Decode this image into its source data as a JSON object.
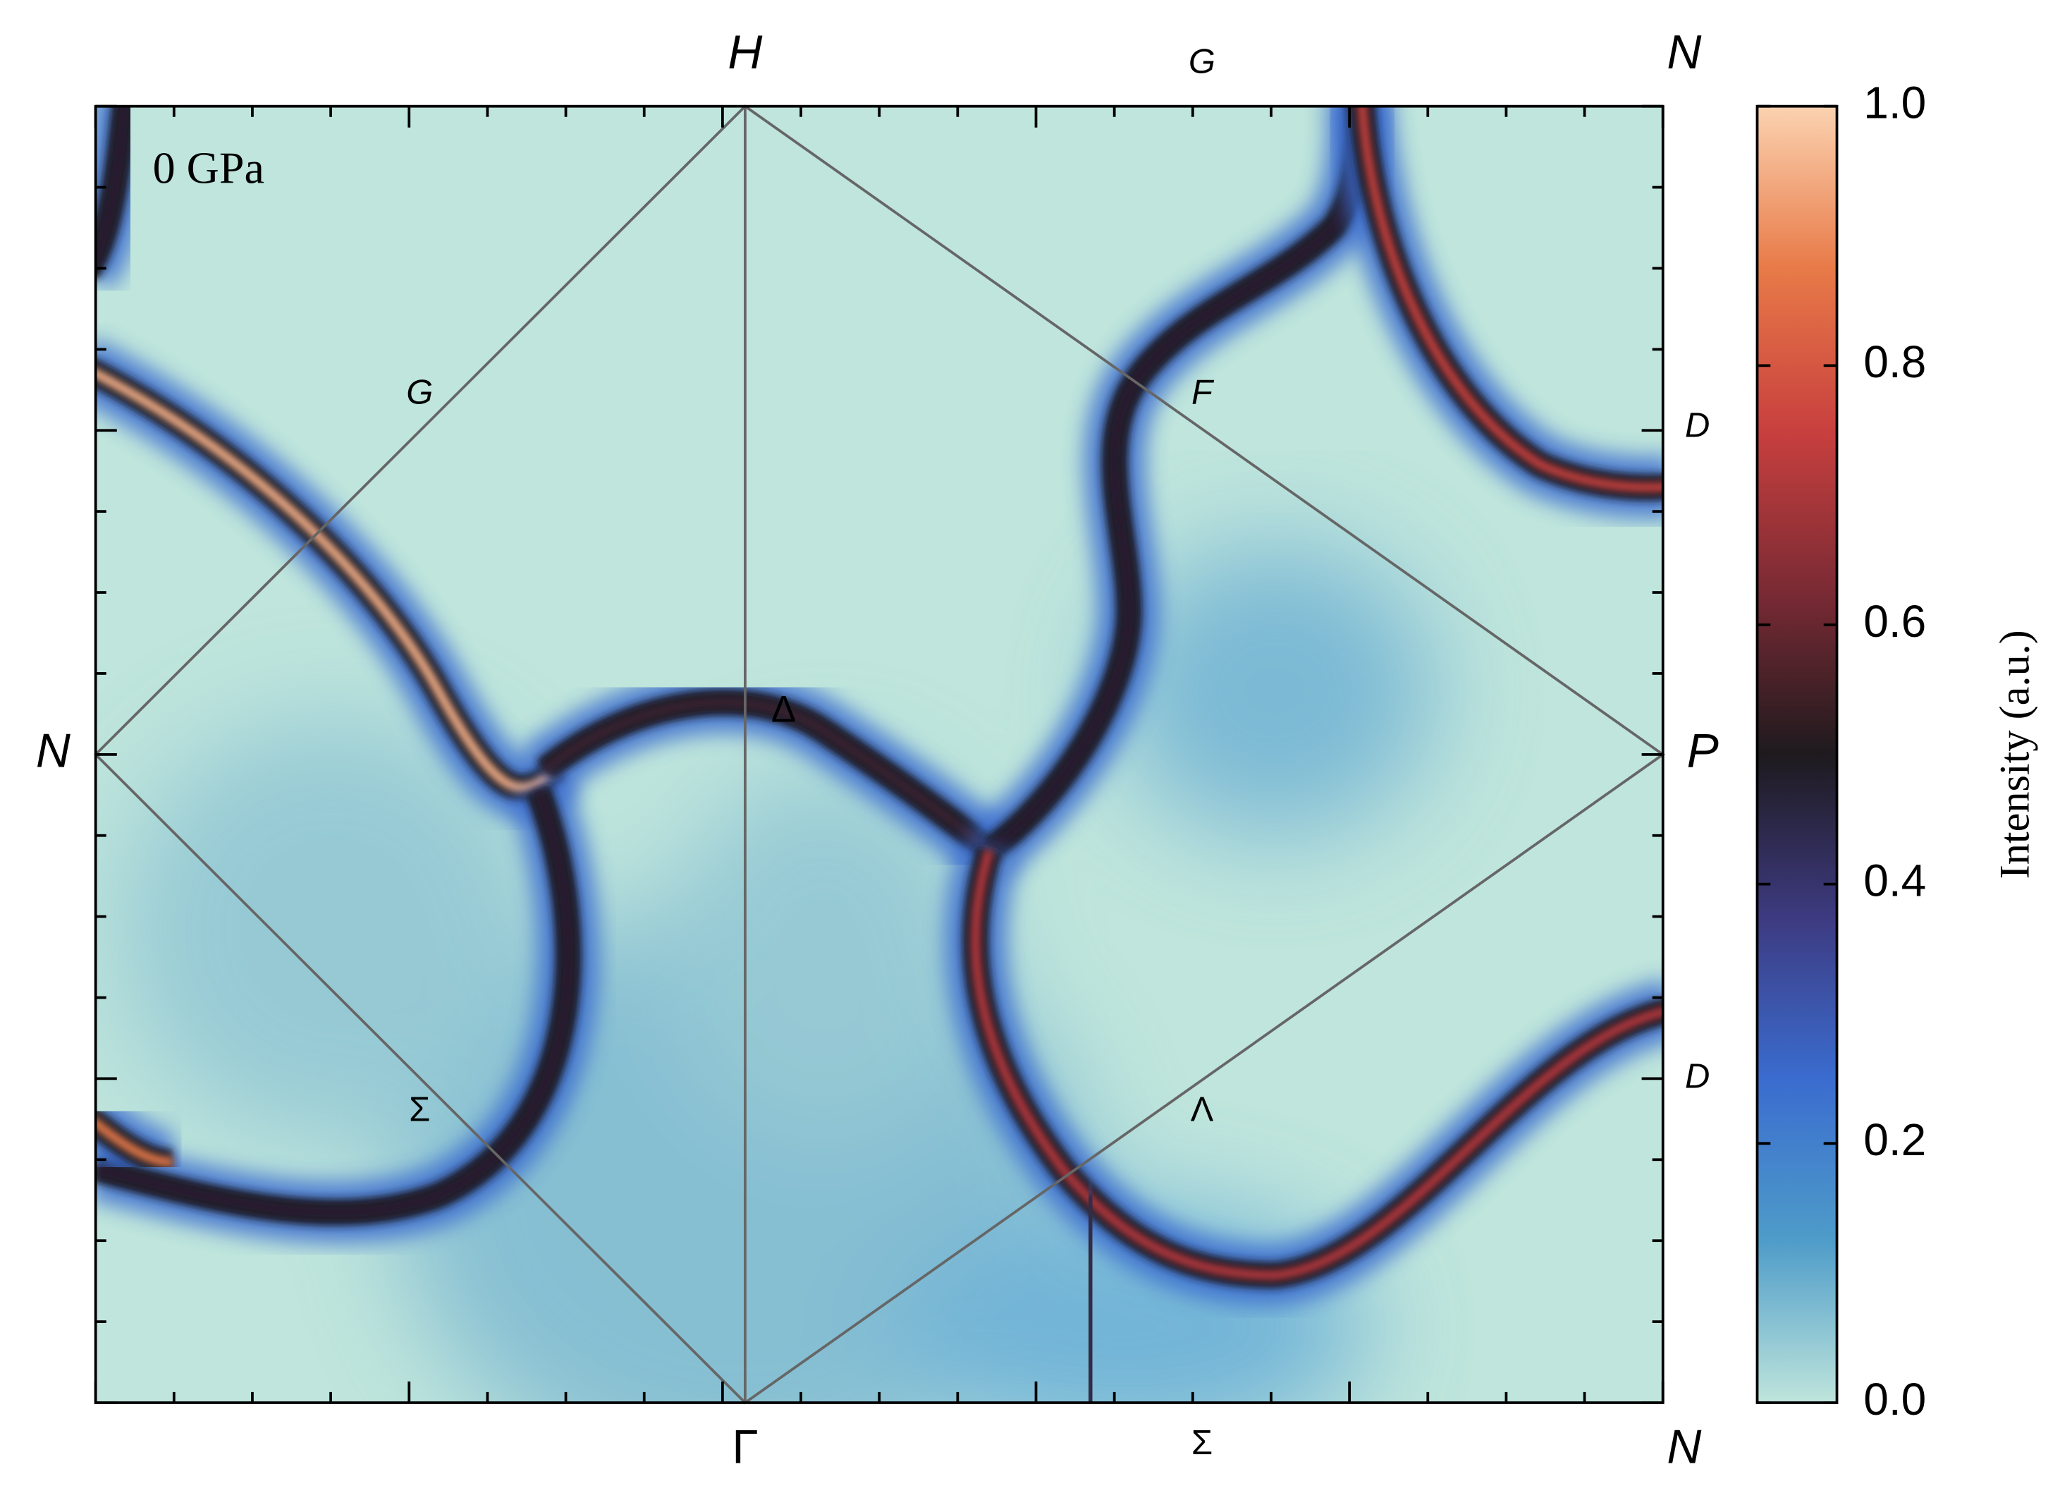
{
  "chart_data": {
    "type": "heatmap",
    "annotation": "0 GPa",
    "point_labels": [
      "H",
      "G",
      "N",
      "N",
      "P",
      "Γ",
      "Σ",
      "N",
      "G",
      "F",
      "D",
      "D",
      "Δ",
      "Σ",
      "Λ"
    ],
    "colorbar": {
      "label": "Intensity (a.u.)",
      "lim": [
        0,
        1
      ],
      "ticks": [
        {
          "value": 0,
          "label": "0.0"
        },
        {
          "value": 0.2,
          "label": "0.2"
        },
        {
          "value": 0.4,
          "label": "0.4"
        },
        {
          "value": 0.6,
          "label": "0.6"
        },
        {
          "value": 0.8,
          "label": "0.8"
        },
        {
          "value": 1,
          "label": "1.0"
        }
      ],
      "colors": [
        "#bfe5dc",
        "#4e9cc9",
        "#3a6ccf",
        "#3d3a80",
        "#1e1a1e",
        "#7a2a34",
        "#c8403e",
        "#e87a48",
        "#fbd2b0"
      ]
    }
  }
}
